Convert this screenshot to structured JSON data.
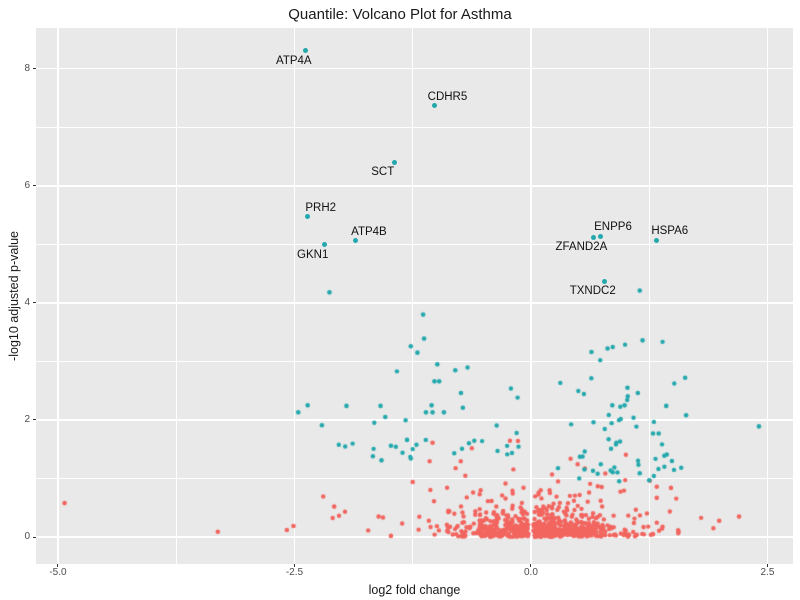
{
  "window": {
    "background": "#FFFFFF"
  },
  "chart_data": {
    "type": "scatter",
    "subtype": "volcano-plot",
    "title": "Quantile: Volcano Plot for Asthma",
    "xlabel": "log2 fold change",
    "ylabel": "-log10 adjusted p-value",
    "xlim": [
      -5.232,
      2.77
    ],
    "ylim": [
      -0.46,
      8.695
    ],
    "x_ticks": [
      {
        "value": -5.0,
        "label": "-5.0"
      },
      {
        "value": -2.5,
        "label": "-2.5"
      },
      {
        "value": 0.0,
        "label": "0.0"
      },
      {
        "value": 2.5,
        "label": "2.5"
      }
    ],
    "y_ticks": [
      {
        "value": 0,
        "label": "0"
      },
      {
        "value": 2,
        "label": "2"
      },
      {
        "value": 4,
        "label": "4"
      },
      {
        "value": 6,
        "label": "6"
      },
      {
        "value": 8,
        "label": "8"
      }
    ],
    "x_minor": [
      -3.75,
      -1.25,
      1.25
    ],
    "y_minor": [
      1,
      3,
      5,
      7
    ],
    "grid": {
      "panel_bg": "#E9E9E9",
      "gridline_color": "#FFFFFF",
      "grid_on": true
    },
    "legend_position": "none",
    "colors": {
      "significant": "#23A8AD",
      "not_significant": "#F2655F"
    },
    "labeled_points": [
      {
        "gene": "ATP4A",
        "x": -2.38,
        "y": 8.31,
        "color": "significant",
        "label_side": "below-left"
      },
      {
        "gene": "CDHR5",
        "x": -1.02,
        "y": 7.37,
        "color": "significant",
        "label_side": "above-right"
      },
      {
        "gene": "SCT",
        "x": -1.44,
        "y": 6.4,
        "color": "significant",
        "label_side": "below-left"
      },
      {
        "gene": "PRH2",
        "x": -2.36,
        "y": 5.47,
        "color": "significant",
        "label_side": "above-right"
      },
      {
        "gene": "ATP4B",
        "x": -1.85,
        "y": 5.06,
        "color": "significant",
        "label_side": "above-right"
      },
      {
        "gene": "GKN1",
        "x": -2.18,
        "y": 4.99,
        "color": "significant",
        "label_side": "below-left"
      },
      {
        "gene": "ENPP6",
        "x": 0.73,
        "y": 5.14,
        "color": "significant",
        "label_side": "above-right"
      },
      {
        "gene": "ZFAND2A",
        "x": 0.66,
        "y": 5.12,
        "color": "significant",
        "label_side": "below-left"
      },
      {
        "gene": "HSPA6",
        "x": 1.33,
        "y": 5.07,
        "color": "significant",
        "label_side": "above-right"
      },
      {
        "gene": "TXNDC2",
        "x": 0.78,
        "y": 4.37,
        "color": "significant",
        "label_side": "below-left"
      }
    ],
    "extra_points": {
      "significant": [
        [
          -2.13,
          4.18
        ],
        [
          1.15,
          4.21
        ],
        [
          2.41,
          1.89
        ],
        [
          -2.46,
          2.13
        ],
        [
          -2.36,
          2.25
        ],
        [
          -2.21,
          1.91
        ],
        [
          -1.95,
          2.24
        ],
        [
          -1.59,
          2.24
        ],
        [
          -1.54,
          2.05
        ],
        [
          -1.48,
          1.56
        ],
        [
          -1.31,
          1.66
        ],
        [
          -1.58,
          1.31
        ],
        [
          -1.14,
          3.8
        ],
        [
          -1.13,
          3.39
        ],
        [
          -1.27,
          3.26
        ],
        [
          -1.2,
          3.15
        ],
        [
          -0.99,
          2.95
        ],
        [
          -0.8,
          2.85
        ],
        [
          -1.02,
          2.66
        ],
        [
          -0.97,
          2.66
        ],
        [
          -0.74,
          2.46
        ],
        [
          -1.05,
          2.25
        ],
        [
          -1.11,
          2.13
        ],
        [
          -1.04,
          2.13
        ],
        [
          -0.92,
          2.13
        ],
        [
          -0.72,
          2.21
        ],
        [
          0.64,
          3.16
        ],
        [
          0.81,
          3.22
        ],
        [
          1.18,
          3.36
        ],
        [
          1.63,
          2.72
        ],
        [
          1.02,
          2.55
        ],
        [
          1.13,
          2.46
        ],
        [
          0.86,
          2.25
        ],
        [
          0.99,
          2.25
        ],
        [
          1.43,
          2.24
        ],
        [
          1.64,
          2.08
        ],
        [
          1.29,
          1.77
        ],
        [
          1.35,
          1.77
        ],
        [
          1.49,
          1.3
        ],
        [
          1.25,
          0.97
        ],
        [
          1.15,
          1.09
        ]
      ],
      "not_significant": [
        [
          -4.93,
          0.58
        ],
        [
          -3.31,
          0.09
        ],
        [
          -2.58,
          0.12
        ],
        [
          -2.51,
          0.19
        ],
        [
          -2.08,
          0.52
        ],
        [
          -1.61,
          0.35
        ],
        [
          -1.48,
          0.02
        ],
        [
          -1.04,
          1.61
        ],
        [
          -1.25,
          0.94
        ],
        [
          1.33,
          0.86
        ],
        [
          1.48,
          0.84
        ],
        [
          1.33,
          0.67
        ],
        [
          1.19,
          0.17
        ],
        [
          1.29,
          0.05
        ],
        [
          1.99,
          0.28
        ],
        [
          2.2,
          0.35
        ]
      ]
    },
    "generated_clusters": {
      "seed": 11,
      "point_radius": 2.2,
      "clusters": [
        {
          "color": "not_significant",
          "count": 500,
          "x": {
            "mean": 0.05,
            "sd": 0.42,
            "min": -1.2,
            "max": 1.28,
            "gap": 0.025
          },
          "y": {
            "base": 0.005,
            "scale": 0.17,
            "max": 0.95
          }
        },
        {
          "color": "not_significant",
          "count": 135,
          "x": {
            "mean": 0.05,
            "sd": 0.6,
            "min": -1.55,
            "max": 1.55,
            "gap": 0.03
          },
          "y": {
            "base": 0.02,
            "scale": 0.45,
            "max": 1.7
          }
        },
        {
          "color": "not_significant",
          "count": 18,
          "x": {
            "mean": 0.0,
            "sd": 1.1,
            "min": -2.4,
            "max": 2.1,
            "gap": 0.025,
            "min_abs": 1.3
          },
          "y": {
            "base": 0.02,
            "scale": 0.3,
            "max": 0.9
          }
        },
        {
          "color": "significant",
          "count": 18,
          "x": {
            "mean": -1.2,
            "sd": 0.38,
            "min": -2.1,
            "max": -0.6
          },
          "y": {
            "base": 1.3,
            "scale": 0.55,
            "max": 3.85
          }
        },
        {
          "color": "significant",
          "count": 52,
          "x": {
            "mean": 0.95,
            "sd": 0.34,
            "min": 0.25,
            "max": 1.95
          },
          "y": {
            "base": 0.95,
            "scale": 0.78,
            "max": 4.45
          }
        },
        {
          "color": "significant",
          "count": 12,
          "x": {
            "mean": -0.3,
            "sd": 0.28,
            "min": -0.75,
            "max": 0.55,
            "gap": 0.08
          },
          "y": {
            "base": 1.4,
            "scale": 0.55,
            "max": 3.85
          }
        }
      ]
    }
  }
}
